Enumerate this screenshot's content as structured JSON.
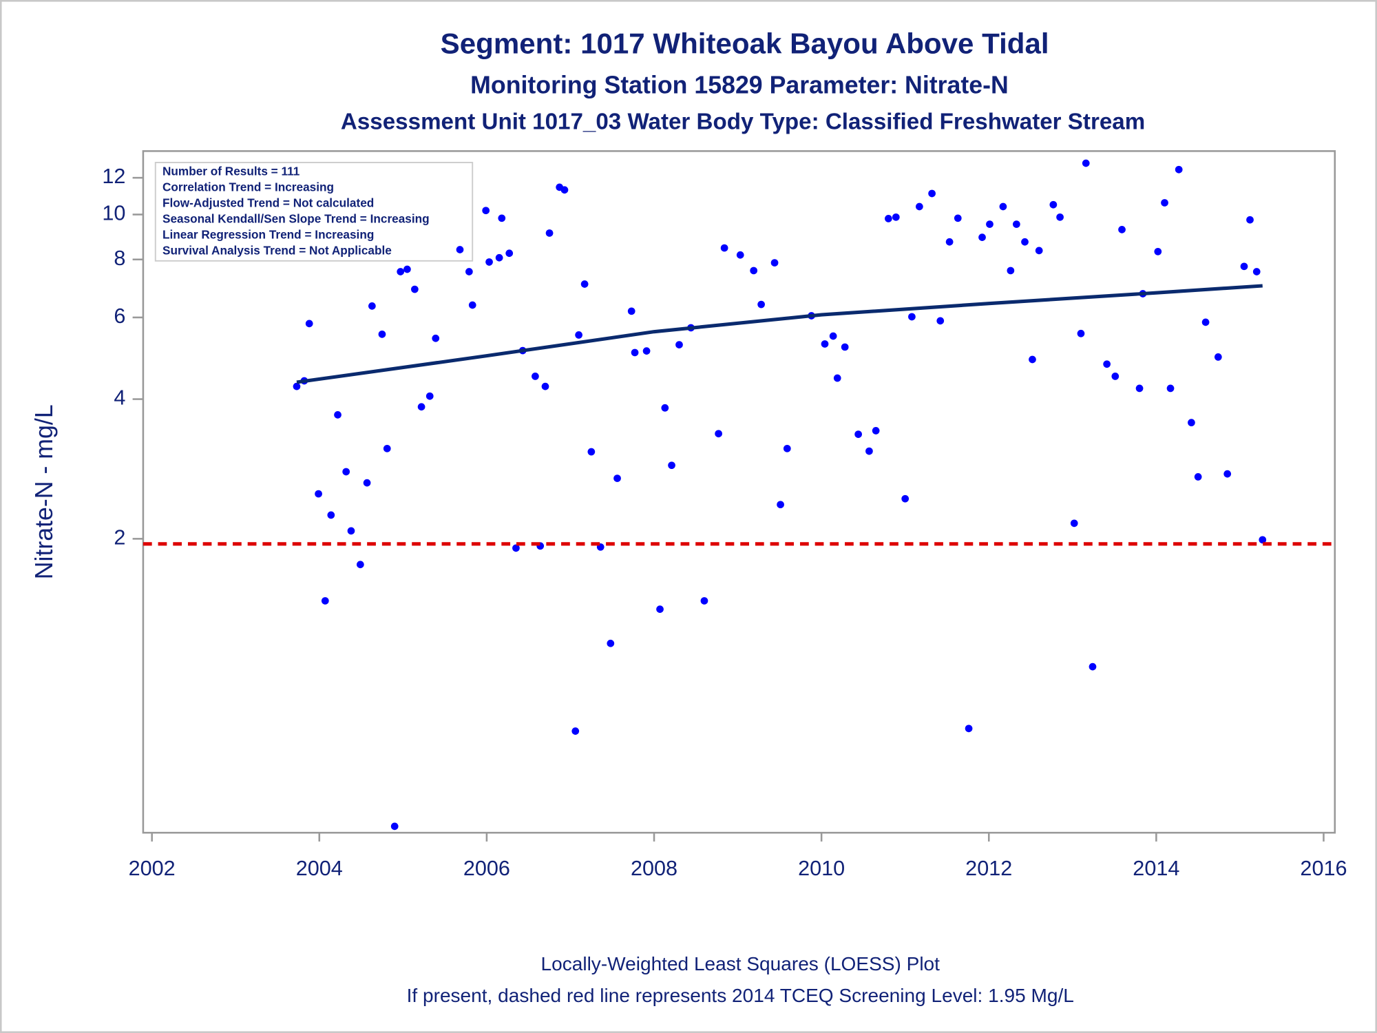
{
  "chart_data": {
    "type": "scatter",
    "titles": [
      "Segment: 1017  Whiteoak Bayou Above Tidal",
      "Monitoring Station 15829 Parameter: Nitrate-N",
      "Assessment Unit 1017_03   Water Body Type: Classified Freshwater Stream"
    ],
    "ylabel": "Nitrate-N - mg/L",
    "notes": [
      "Number of Results = 111",
      "Correlation Trend = Increasing",
      "Flow-Adjusted Trend = Not calculated",
      "Seasonal Kendall/Sen Slope Trend = Increasing",
      "Linear Regression Trend = Increasing",
      "Survival Analysis Trend = Not Applicable"
    ],
    "footnotes": [
      "Locally-Weighted Least Squares (LOESS) Plot",
      "If present, dashed red line represents 2014 TCEQ Screening Level: 1.95 Mg/L"
    ],
    "xlim": [
      2001.895,
      2016.134
    ],
    "xticks": [
      2002,
      2004,
      2006,
      2008,
      2010,
      2012,
      2014,
      2016
    ],
    "ylim": [
      0.465,
      13.7
    ],
    "yticks": [
      2,
      4,
      6,
      8,
      10,
      12
    ],
    "y_log_scale": true,
    "color": "#0000ff",
    "x": [
      2003.73,
      2003.82,
      2003.88,
      2003.99,
      2004.07,
      2004.14,
      2004.22,
      2004.32,
      2004.38,
      2004.49,
      2004.57,
      2004.63,
      2004.75,
      2004.81,
      2004.9,
      2004.97,
      2005.05,
      2005.14,
      2005.22,
      2005.32,
      2005.39,
      2005.68,
      2005.79,
      2005.83,
      2005.99,
      2006.03,
      2006.15,
      2006.18,
      2006.27,
      2006.35,
      2006.43,
      2006.58,
      2006.64,
      2006.7,
      2006.75,
      2006.87,
      2006.93,
      2007.06,
      2007.1,
      2007.17,
      2007.25,
      2007.36,
      2007.48,
      2007.56,
      2007.73,
      2007.77,
      2007.91,
      2008.07,
      2008.13,
      2008.21,
      2008.3,
      2008.44,
      2008.6,
      2008.77,
      2008.84,
      2009.03,
      2009.19,
      2009.28,
      2009.44,
      2009.51,
      2009.59,
      2009.88,
      2010.04,
      2010.14,
      2010.19,
      2010.28,
      2010.44,
      2010.57,
      2010.65,
      2010.8,
      2010.89,
      2011.0,
      2011.08,
      2011.17,
      2011.32,
      2011.42,
      2011.53,
      2011.63,
      2011.76,
      2011.92,
      2012.01,
      2012.17,
      2012.26,
      2012.33,
      2012.43,
      2012.52,
      2012.6,
      2012.77,
      2012.85,
      2013.02,
      2013.1,
      2013.16,
      2013.24,
      2013.41,
      2013.51,
      2013.59,
      2013.8,
      2013.84,
      2014.02,
      2014.1,
      2014.17,
      2014.27,
      2014.42,
      2014.5,
      2014.59,
      2014.74,
      2014.85,
      2015.05,
      2015.12,
      2015.2,
      2015.27
    ],
    "values": [
      4.26,
      4.38,
      5.82,
      2.5,
      1.47,
      2.25,
      3.7,
      2.79,
      2.08,
      1.76,
      2.64,
      6.35,
      5.52,
      3.13,
      0.48,
      7.53,
      7.62,
      6.9,
      3.85,
      4.06,
      5.41,
      8.4,
      7.53,
      6.38,
      10.2,
      7.9,
      8.07,
      9.82,
      8.25,
      1.91,
      5.09,
      4.48,
      1.93,
      4.26,
      9.12,
      11.45,
      11.3,
      0.77,
      5.5,
      7.08,
      3.08,
      1.92,
      1.19,
      2.7,
      6.19,
      5.04,
      5.08,
      1.41,
      3.83,
      2.88,
      5.24,
      5.7,
      1.47,
      3.37,
      8.47,
      8.18,
      7.57,
      6.4,
      7.87,
      2.37,
      3.13,
      6.05,
      5.26,
      5.47,
      4.44,
      5.18,
      3.36,
      3.09,
      3.42,
      9.8,
      9.87,
      2.44,
      6.02,
      10.4,
      11.1,
      5.9,
      8.73,
      9.82,
      0.78,
      8.93,
      9.53,
      10.4,
      7.57,
      9.53,
      8.73,
      4.87,
      8.36,
      10.5,
      9.87,
      2.16,
      5.54,
      12.9,
      1.06,
      4.76,
      4.48,
      9.28,
      4.22,
      6.75,
      8.32,
      10.6,
      4.22,
      12.5,
      3.56,
      2.72,
      5.86,
      4.93,
      2.76,
      7.73,
      9.74,
      7.53,
      1.99
    ],
    "trend": {
      "color": "#0a2a6e",
      "x": [
        2003.73,
        2006,
        2008,
        2010,
        2012,
        2014,
        2015.27
      ],
      "values": [
        4.35,
        4.96,
        5.59,
        6.08,
        6.43,
        6.78,
        7.02
      ]
    },
    "reference_line": {
      "value": 1.95,
      "color": "#dd0000"
    }
  }
}
